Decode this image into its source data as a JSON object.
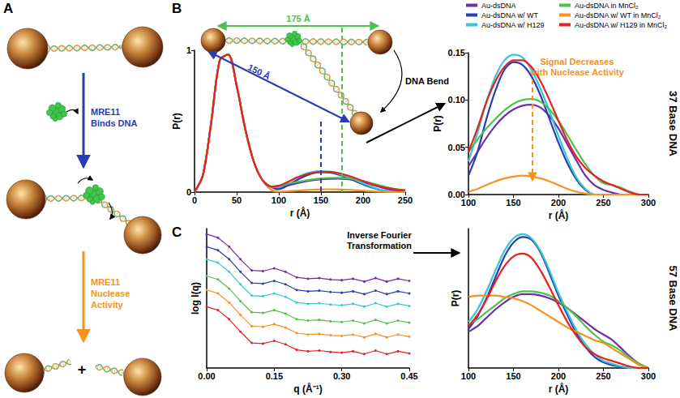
{
  "chart_data": [
    {
      "type": "line",
      "x_label": "r (Å)",
      "y_label": "P(r)",
      "xlim": [
        0,
        250
      ],
      "ylim": [
        0,
        1
      ],
      "xticks": [
        0,
        50,
        100,
        150,
        200,
        250
      ],
      "yticks": [
        0,
        1
      ],
      "legend": "top-right",
      "x": [
        0,
        10,
        20,
        30,
        40,
        50,
        60,
        70,
        80,
        90,
        100,
        110,
        120,
        130,
        140,
        150,
        160,
        170,
        180,
        190,
        200,
        210,
        220,
        230,
        240,
        250
      ],
      "series": [
        {
          "name": "Au-dsDNA",
          "color": "#6f2da8",
          "values": [
            0,
            0.12,
            0.5,
            0.93,
            0.97,
            0.75,
            0.45,
            0.22,
            0.09,
            0.04,
            0.03,
            0.045,
            0.06,
            0.073,
            0.083,
            0.09,
            0.094,
            0.095,
            0.092,
            0.083,
            0.07,
            0.053,
            0.036,
            0.02,
            0.01,
            0.005
          ]
        },
        {
          "name": "Au-dsDNA w/ WT",
          "color": "#2b3cb2",
          "values": [
            0,
            0.12,
            0.5,
            0.93,
            0.97,
            0.75,
            0.45,
            0.22,
            0.09,
            0.04,
            0.02,
            0.045,
            0.08,
            0.11,
            0.132,
            0.14,
            0.137,
            0.125,
            0.105,
            0.08,
            0.055,
            0.033,
            0.016,
            0.005,
            0,
            0
          ]
        },
        {
          "name": "Au-dsDNA w/ H129",
          "color": "#35c8d2",
          "values": [
            0,
            0.12,
            0.5,
            0.93,
            0.97,
            0.75,
            0.45,
            0.22,
            0.09,
            0.04,
            0.035,
            0.065,
            0.098,
            0.125,
            0.142,
            0.148,
            0.145,
            0.132,
            0.112,
            0.088,
            0.062,
            0.038,
            0.018,
            0.006,
            0,
            0
          ]
        },
        {
          "name": "Au-dsDNA in MnCl₂",
          "color": "#4cc24c",
          "values": [
            0,
            0.12,
            0.5,
            0.93,
            0.97,
            0.75,
            0.45,
            0.22,
            0.09,
            0.04,
            0.045,
            0.058,
            0.07,
            0.08,
            0.089,
            0.096,
            0.1,
            0.101,
            0.098,
            0.09,
            0.078,
            0.063,
            0.047,
            0.032,
            0.02,
            0.012
          ]
        },
        {
          "name": "Au-dsDNA w/ WT in MnCl₂",
          "color": "#f7921e",
          "values": [
            0,
            0.12,
            0.5,
            0.93,
            0.97,
            0.75,
            0.45,
            0.22,
            0.09,
            0.02,
            0.003,
            0.006,
            0.01,
            0.014,
            0.017,
            0.019,
            0.02,
            0.019,
            0.017,
            0.014,
            0.01,
            0.006,
            0.003,
            0.001,
            0,
            0
          ]
        },
        {
          "name": "Au-dsDNA w/ H129 in MnCl₂",
          "color": "#e32222",
          "values": [
            0,
            0.12,
            0.5,
            0.93,
            0.97,
            0.75,
            0.45,
            0.22,
            0.09,
            0.04,
            0.045,
            0.07,
            0.098,
            0.12,
            0.135,
            0.142,
            0.142,
            0.135,
            0.12,
            0.1,
            0.078,
            0.057,
            0.04,
            0.028,
            0.02,
            0.014
          ]
        }
      ],
      "annotations": [
        {
          "text": "175 Å",
          "r": 175,
          "color": "#4cc24c"
        },
        {
          "text": "150 Å",
          "r": 150,
          "color": "#2b3cb2"
        }
      ]
    },
    {
      "type": "line",
      "x_label": "r (Å)",
      "y_label": "P(r)",
      "xlim": [
        100,
        300
      ],
      "ylim": [
        0,
        0.15
      ],
      "xticks": [
        100,
        150,
        200,
        250,
        300
      ],
      "yticks": [
        {
          "value": 0,
          "label": "0.00"
        },
        {
          "value": 0.05,
          "label": "0.05"
        },
        {
          "value": 0.1,
          "label": "0.10"
        },
        {
          "value": 0.15,
          "label": "0.15"
        }
      ],
      "x": [
        100,
        110,
        120,
        130,
        140,
        150,
        160,
        170,
        180,
        190,
        200,
        210,
        220,
        230,
        240,
        250,
        260,
        270,
        280,
        290,
        300
      ],
      "series": [
        {
          "name": "Au-dsDNA",
          "color": "#6f2da8",
          "values": [
            0.03,
            0.045,
            0.06,
            0.073,
            0.083,
            0.09,
            0.094,
            0.095,
            0.092,
            0.083,
            0.07,
            0.053,
            0.036,
            0.02,
            0.01,
            0.005,
            0.002,
            0,
            0,
            0,
            0
          ]
        },
        {
          "name": "Au-dsDNA w/ WT",
          "color": "#2b3cb2",
          "values": [
            0.02,
            0.045,
            0.08,
            0.11,
            0.132,
            0.14,
            0.137,
            0.125,
            0.105,
            0.08,
            0.055,
            0.033,
            0.016,
            0.005,
            0,
            0,
            0,
            0,
            0,
            0,
            0
          ]
        },
        {
          "name": "Au-dsDNA w/ H129",
          "color": "#35c8d2",
          "values": [
            0.035,
            0.065,
            0.098,
            0.125,
            0.142,
            0.148,
            0.145,
            0.132,
            0.112,
            0.088,
            0.062,
            0.038,
            0.018,
            0.006,
            0,
            0,
            0,
            0,
            0,
            0,
            0
          ]
        },
        {
          "name": "Au-dsDNA in MnCl₂",
          "color": "#4cc24c",
          "values": [
            0.045,
            0.058,
            0.07,
            0.08,
            0.089,
            0.096,
            0.1,
            0.101,
            0.098,
            0.09,
            0.078,
            0.063,
            0.047,
            0.032,
            0.02,
            0.012,
            0.01,
            0.007,
            0.003,
            0,
            0
          ]
        },
        {
          "name": "Au-dsDNA w/ WT in MnCl₂",
          "color": "#f7921e",
          "values": [
            0.003,
            0.006,
            0.01,
            0.014,
            0.017,
            0.019,
            0.02,
            0.019,
            0.017,
            0.014,
            0.01,
            0.006,
            0.003,
            0.001,
            0,
            0,
            0,
            0,
            0,
            0,
            0
          ]
        },
        {
          "name": "Au-dsDNA w/ H129 in MnCl₂",
          "color": "#e32222",
          "values": [
            0.045,
            0.07,
            0.098,
            0.12,
            0.135,
            0.142,
            0.142,
            0.135,
            0.12,
            0.1,
            0.078,
            0.057,
            0.04,
            0.028,
            0.02,
            0.014,
            0.01,
            0.006,
            0.002,
            0,
            0
          ]
        }
      ],
      "annotations": [
        {
          "text": [
            "Signal Decreases",
            "with Nuclease Activity"
          ],
          "color": "#f7921e"
        }
      ]
    },
    {
      "type": "line",
      "marker": "circle",
      "x_label": "q (Å⁻¹)",
      "y_label": "log I(q)",
      "xlim": [
        0,
        0.45
      ],
      "ylim": [
        0,
        10
      ],
      "xticks": [
        {
          "value": 0,
          "label": "0.00"
        },
        {
          "value": 0.15,
          "label": "0.15"
        },
        {
          "value": 0.3,
          "label": "0.30"
        },
        {
          "value": 0.45,
          "label": "0.45"
        }
      ],
      "tick_labels": "x",
      "x": [
        0,
        0.025,
        0.05,
        0.075,
        0.1,
        0.125,
        0.15,
        0.175,
        0.2,
        0.225,
        0.25,
        0.275,
        0.3,
        0.325,
        0.35,
        0.375,
        0.4,
        0.425,
        0.45
      ],
      "series": [
        {
          "name": "Au-dsDNA",
          "color": "#6f2da8",
          "values": [
            9.6,
            9.35,
            8.7,
            7.8,
            7.0,
            6.95,
            7.15,
            6.9,
            6.5,
            6.4,
            6.45,
            6.35,
            6.3,
            6.4,
            6.2,
            6.45,
            6.2,
            6.4,
            6.25
          ]
        },
        {
          "name": "Au-dsDNA w/ WT",
          "color": "#2b3cb2",
          "values": [
            8.7,
            8.45,
            7.8,
            6.9,
            6.1,
            6.05,
            6.25,
            6.0,
            5.6,
            5.5,
            5.55,
            5.45,
            5.4,
            5.5,
            5.3,
            5.55,
            5.3,
            5.5,
            5.35
          ]
        },
        {
          "name": "Au-dsDNA w/ H129",
          "color": "#35c8d2",
          "values": [
            7.8,
            7.55,
            6.9,
            6.0,
            5.2,
            5.15,
            5.35,
            5.1,
            4.7,
            4.6,
            4.65,
            4.55,
            4.5,
            4.6,
            4.4,
            4.65,
            4.4,
            4.6,
            4.45
          ]
        },
        {
          "name": "Au-dsDNA in MnCl₂",
          "color": "#4cc24c",
          "values": [
            6.6,
            6.35,
            5.7,
            4.8,
            4.0,
            3.95,
            4.15,
            3.9,
            3.5,
            3.4,
            3.45,
            3.35,
            3.3,
            3.4,
            3.2,
            3.45,
            3.2,
            3.4,
            3.25
          ]
        },
        {
          "name": "Au-dsDNA w/ WT in MnCl₂",
          "color": "#f7921e",
          "values": [
            5.6,
            5.35,
            4.7,
            3.8,
            3.0,
            2.95,
            3.15,
            2.9,
            2.5,
            2.4,
            2.45,
            2.35,
            2.3,
            2.4,
            2.2,
            2.45,
            2.2,
            2.4,
            2.25
          ]
        },
        {
          "name": "Au-dsDNA w/ H129 in MnCl₂",
          "color": "#e32222",
          "values": [
            4.4,
            4.15,
            3.5,
            2.6,
            1.8,
            1.75,
            1.95,
            1.7,
            1.3,
            1.2,
            1.25,
            1.15,
            1.1,
            1.2,
            1.0,
            1.25,
            1.0,
            1.2,
            1.05
          ]
        }
      ]
    },
    {
      "type": "line",
      "x_label": "r (Å)",
      "y_label": "P(r)",
      "xlim": [
        100,
        300
      ],
      "ylim": [
        0,
        1
      ],
      "xticks": [
        100,
        150,
        200,
        250,
        300
      ],
      "tick_labels": "x",
      "x": [
        100,
        110,
        120,
        130,
        140,
        150,
        160,
        170,
        180,
        190,
        200,
        210,
        220,
        230,
        240,
        250,
        260,
        270,
        280,
        290,
        300
      ],
      "series": [
        {
          "name": "Au-dsDNA",
          "color": "#6f2da8",
          "values": [
            0.26,
            0.3,
            0.36,
            0.42,
            0.47,
            0.51,
            0.53,
            0.53,
            0.52,
            0.5,
            0.47,
            0.43,
            0.38,
            0.33,
            0.28,
            0.24,
            0.2,
            0.14,
            0.08,
            0.03,
            0
          ]
        },
        {
          "name": "Au-dsDNA w/ WT",
          "color": "#2b3cb2",
          "values": [
            0.28,
            0.37,
            0.5,
            0.65,
            0.8,
            0.9,
            0.94,
            0.92,
            0.83,
            0.68,
            0.52,
            0.38,
            0.25,
            0.15,
            0.08,
            0.04,
            0.02,
            0.01,
            0,
            0,
            0
          ]
        },
        {
          "name": "Au-dsDNA w/ H129",
          "color": "#35c8d2",
          "values": [
            0.33,
            0.42,
            0.55,
            0.7,
            0.84,
            0.93,
            0.96,
            0.93,
            0.84,
            0.7,
            0.54,
            0.4,
            0.27,
            0.17,
            0.1,
            0.05,
            0.03,
            0.01,
            0,
            0,
            0
          ]
        },
        {
          "name": "Au-dsDNA in MnCl₂",
          "color": "#4cc24c",
          "values": [
            0.31,
            0.35,
            0.4,
            0.45,
            0.5,
            0.53,
            0.55,
            0.55,
            0.54,
            0.52,
            0.48,
            0.43,
            0.37,
            0.3,
            0.24,
            0.19,
            0.16,
            0.12,
            0.07,
            0.03,
            0
          ]
        },
        {
          "name": "Au-dsDNA w/ WT in MnCl₂",
          "color": "#f7921e",
          "values": [
            0.51,
            0.52,
            0.52,
            0.52,
            0.51,
            0.5,
            0.48,
            0.45,
            0.41,
            0.37,
            0.33,
            0.29,
            0.26,
            0.23,
            0.2,
            0.18,
            0.14,
            0.1,
            0.06,
            0.02,
            0
          ]
        },
        {
          "name": "Au-dsDNA w/ H129 in MnCl₂",
          "color": "#e32222",
          "values": [
            0.3,
            0.38,
            0.49,
            0.62,
            0.73,
            0.8,
            0.82,
            0.79,
            0.7,
            0.58,
            0.45,
            0.33,
            0.23,
            0.15,
            0.1,
            0.07,
            0.05,
            0.03,
            0.01,
            0,
            0
          ]
        }
      ]
    }
  ],
  "diagram": {
    "panel_labels": [
      "A",
      "B",
      "C"
    ],
    "panel_A": {
      "bind_label": [
        "MRE11",
        "Binds DNA"
      ],
      "bind_color": "#2b3cb2",
      "nuclease_label": [
        "MRE11",
        "Nuclease",
        "Activity"
      ],
      "nuclease_color": "#f7921e",
      "plus": "+"
    },
    "bend_label": "DNA Bend",
    "transform_label": [
      "Inverse Fourier",
      "Transformation"
    ],
    "side_labels": [
      "37 Base DNA",
      "57 Base DNA"
    ]
  }
}
